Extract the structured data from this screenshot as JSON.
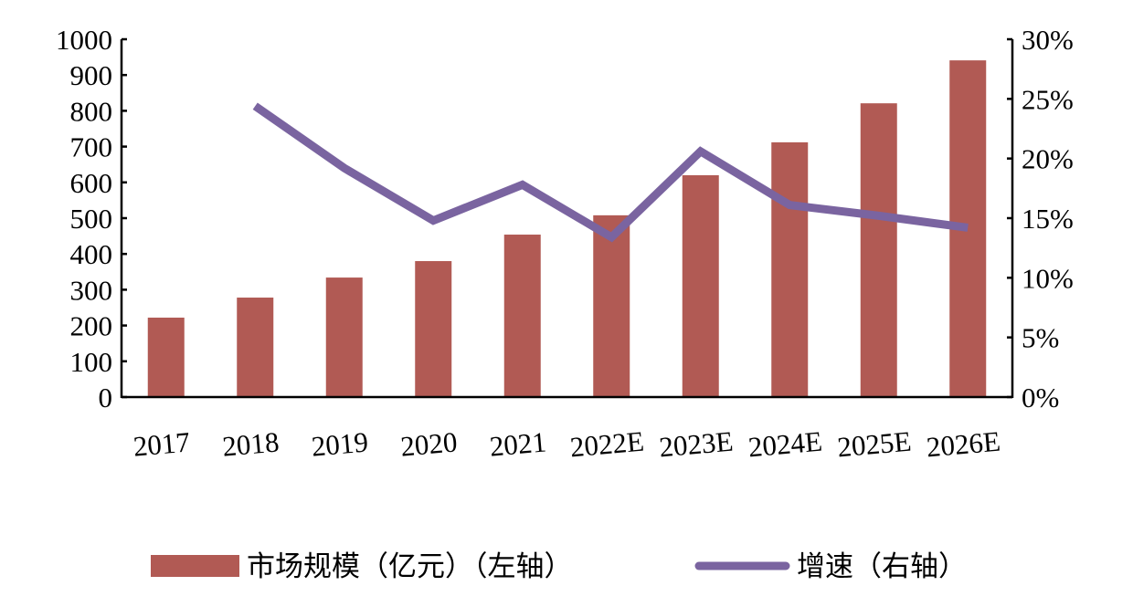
{
  "chart_data": {
    "type": "bar+line",
    "categories": [
      "2017",
      "2018",
      "2019",
      "2020",
      "2021",
      "2022E",
      "2023E",
      "2024E",
      "2025E",
      "2026E"
    ],
    "series": [
      {
        "name": "市场规模（亿元）（左轴）",
        "type": "bar",
        "axis": "left",
        "color": "#b15a54",
        "values": [
          222,
          278,
          334,
          380,
          454,
          508,
          620,
          712,
          821,
          941
        ]
      },
      {
        "name": "增速（右轴）",
        "type": "line",
        "axis": "right",
        "color": "#7a64a0",
        "values": [
          null,
          24.4,
          19.2,
          14.8,
          17.8,
          13.4,
          20.6,
          16.1,
          15.2,
          14.2
        ]
      }
    ],
    "y_left": {
      "range": [
        0,
        1000
      ],
      "ticks": [
        "0",
        "100",
        "200",
        "300",
        "400",
        "500",
        "600",
        "700",
        "800",
        "900",
        "1000"
      ]
    },
    "y_right": {
      "range": [
        0,
        30
      ],
      "unit": "%",
      "ticks": [
        "0%",
        "5%",
        "10%",
        "15%",
        "20%",
        "25%",
        "30%"
      ]
    },
    "grid": false,
    "legend_placement": "bottom"
  }
}
